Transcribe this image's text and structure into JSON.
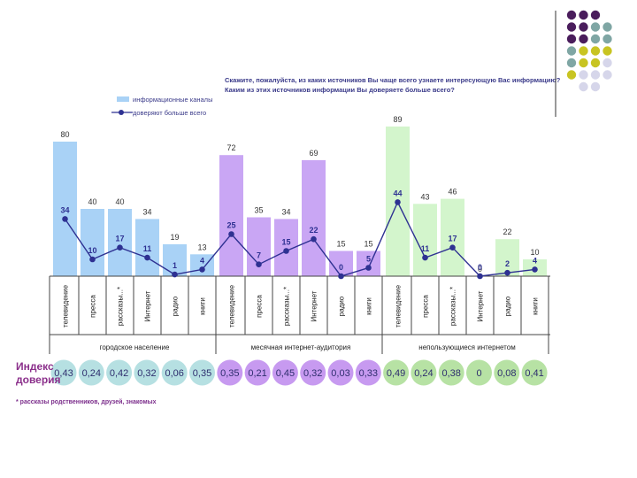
{
  "question": {
    "line1": "Скажите, пожалуйста, из каких источников Вы чаще всего узнаете интересующую Вас информацию?",
    "line2": "Каким из этих источников информации Вы доверяете больше всего?"
  },
  "legend": {
    "bars": "информационные каналы",
    "line": "доверяют больше всего"
  },
  "trust_index_label_line1": "Индекс",
  "trust_index_label_line2": "доверия",
  "footnote": "* рассказы родственников, друзей, знакомых",
  "colors": {
    "urban": "#a9d2f6",
    "monthly": "#c9a6f4",
    "non_users": "#d3f5cc",
    "line": "#2e3192",
    "trust_urban": "#b6e0e2",
    "trust_monthly": "#c79af0",
    "trust_non_users": "#b7e2a4",
    "dots_purple": "#4a1d5c",
    "dots_teal": "#7fa6a4",
    "dots_yellow": "#c8c422",
    "dots_lavender": "#d6d6ea"
  },
  "chart_data": {
    "type": "bar",
    "title": "Скажите, пожалуйста, из каких источников Вы чаще всего узнаете интересующую Вас информацию? Каким из этих источников информации Вы доверяете больше всего?",
    "categories": [
      "телевидение",
      "пресса",
      "рассказы...*",
      "Интернет",
      "радио",
      "книги"
    ],
    "ylim": [
      0,
      100
    ],
    "groups": [
      {
        "name": "городское население",
        "bar_values": [
          80,
          40,
          40,
          34,
          19,
          13
        ],
        "line_values": [
          34,
          10,
          17,
          11,
          1,
          4
        ],
        "trust_index": [
          "0,43",
          "0,24",
          "0,42",
          "0,32",
          "0,06",
          "0,35"
        ]
      },
      {
        "name": "месячная интернет-аудитория",
        "bar_values": [
          72,
          35,
          34,
          69,
          15,
          15
        ],
        "line_values": [
          25,
          7,
          15,
          22,
          0,
          5
        ],
        "trust_index": [
          "0,35",
          "0,21",
          "0,45",
          "0,32",
          "0,03",
          "0,33"
        ]
      },
      {
        "name": "непользующиеся интернетом",
        "bar_values": [
          89,
          43,
          46,
          0,
          22,
          10
        ],
        "line_values": [
          44,
          11,
          17,
          0,
          2,
          4
        ],
        "trust_index": [
          "0,49",
          "0,24",
          "0,38",
          "0",
          "0,08",
          "0,41"
        ]
      }
    ],
    "series": [
      {
        "name": "информационные каналы",
        "kind": "bar"
      },
      {
        "name": "доверяют больше всего",
        "kind": "line"
      }
    ]
  }
}
